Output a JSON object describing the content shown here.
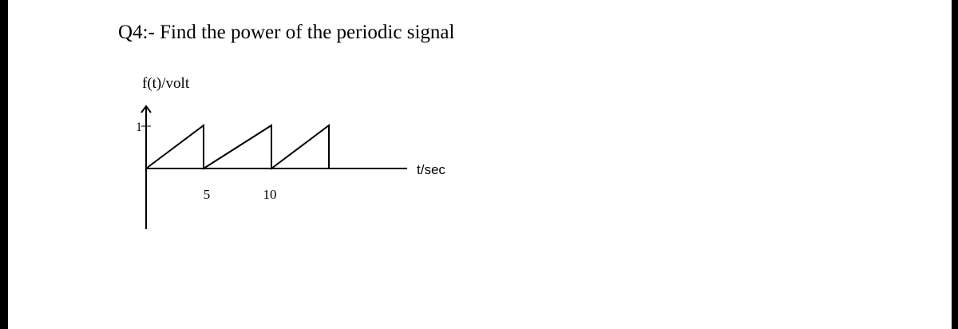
{
  "question": {
    "title": "Q4:- Find the power of the periodic signal"
  },
  "diagram": {
    "y_axis_label": "f(t)/volt",
    "y_tick": "1",
    "x_ticks": [
      "5",
      "10"
    ],
    "x_axis_label": "t/sec"
  }
}
